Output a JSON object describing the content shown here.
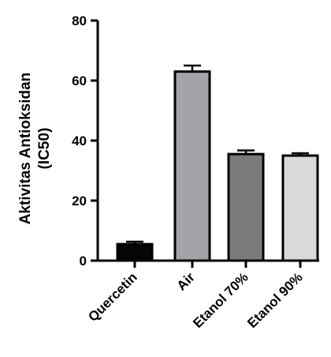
{
  "chart_data": {
    "type": "bar",
    "categories": [
      "Quercetin",
      "Air",
      "Etanol 70%",
      "Etanol 90%"
    ],
    "values": [
      5.5,
      63,
      35.5,
      35
    ],
    "errors": [
      0.8,
      2.0,
      1.2,
      0.8
    ],
    "bar_colors": [
      "#050505",
      "#a3a3a9",
      "#7a7a7a",
      "#d9d9d9"
    ],
    "ylabel_lines": [
      "Aktivitas Antioksidan",
      "(IC50)"
    ],
    "ylim": [
      0,
      80
    ],
    "yticks": [
      0,
      20,
      40,
      60,
      80
    ],
    "grid": false,
    "legend": "none"
  }
}
